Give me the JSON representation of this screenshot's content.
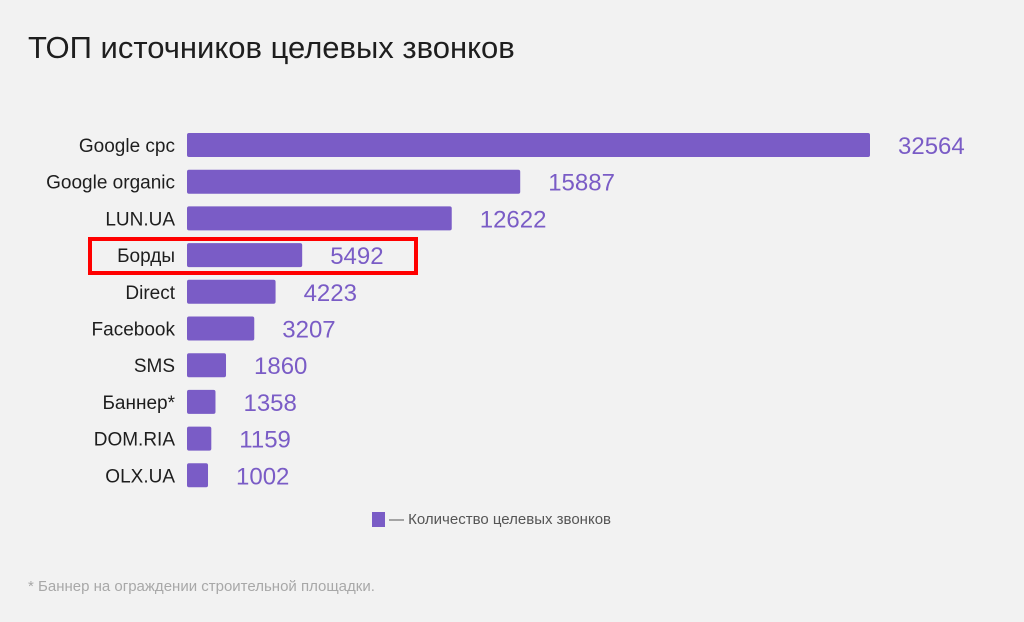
{
  "chart_data": {
    "type": "bar",
    "orientation": "horizontal",
    "title": "ТОП источников целевых звонков",
    "categories": [
      "Google cpc",
      "Google organic",
      "LUN.UA",
      "Борды",
      "Direct",
      "Facebook",
      "SMS",
      "Баннер*",
      "DOM.RIA",
      "OLX.UA"
    ],
    "series": [
      {
        "name": "— Количество целевых звонков",
        "values": [
          32564,
          15887,
          12622,
          5492,
          4223,
          3207,
          1860,
          1358,
          1159,
          1002
        ],
        "color": "#7a5cc6"
      }
    ],
    "highlighted_category": "Борды",
    "highlight_color": "#ff0000",
    "xlim": [
      0,
      32564
    ],
    "grid": false,
    "legend_position": "bottom-center",
    "footnote": "* Баннер на ограждении строительной площадки."
  }
}
